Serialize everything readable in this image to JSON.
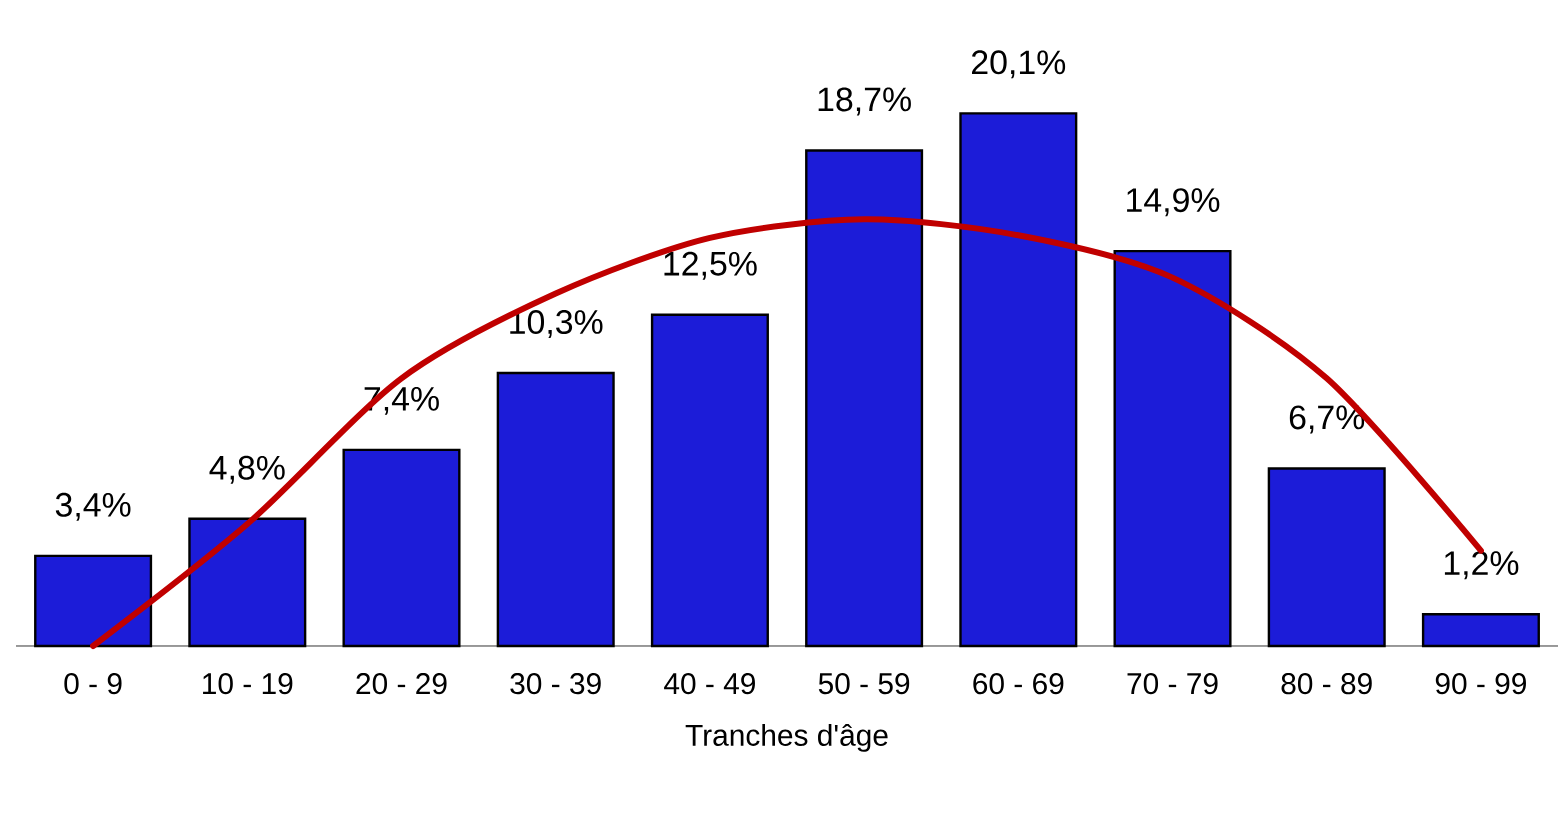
{
  "chart_data": {
    "type": "bar",
    "xlabel": "Tranches d'âge",
    "categories": [
      "0 - 9",
      "10 - 19",
      "20 - 29",
      "30 - 39",
      "40 - 49",
      "50 - 59",
      "60 - 69",
      "70 - 79",
      "80 - 89",
      "90 - 99"
    ],
    "tick_labels": "x",
    "series": [
      {
        "color": "#1c1cd8",
        "values": [
          3.4,
          4.8,
          7.4,
          10.3,
          12.5,
          18.7,
          20.1,
          14.9,
          6.7,
          1.2
        ],
        "value_labels": [
          "3,4%",
          "4,8%",
          "7,4%",
          "10,3%",
          "12,5%",
          "18,7%",
          "20,1%",
          "14,9%",
          "6,7%",
          "1,2%"
        ]
      },
      {
        "type": "line",
        "color": "#c00000",
        "values": [
          0,
          4.6,
          10.1,
          13.3,
          15.4,
          16.1,
          15.5,
          13.9,
          10.1,
          3.6
        ]
      }
    ]
  }
}
